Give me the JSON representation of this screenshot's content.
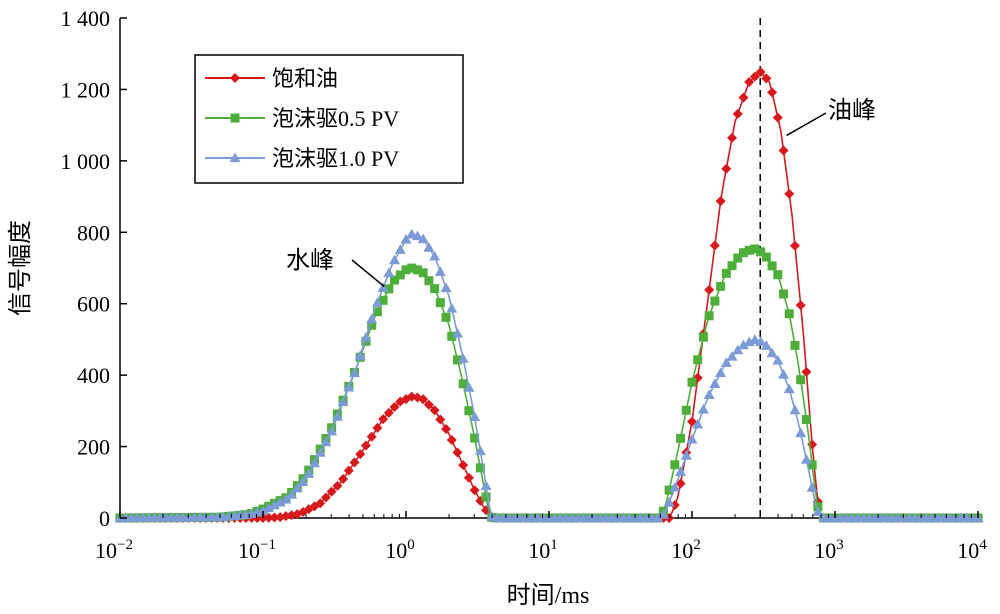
{
  "chart_data": {
    "type": "line",
    "title": "",
    "xlabel": "时间/ms",
    "ylabel": "信号幅度",
    "x_scale": "log",
    "xlim": [
      0.01,
      10000
    ],
    "ylim": [
      0,
      1400
    ],
    "grid": false,
    "legend_position": "top-left",
    "x_tick_labels": [
      "10⁻²",
      "10⁻¹",
      "10⁰",
      "10¹",
      "10²",
      "10³",
      "10⁴"
    ],
    "x_tick_values": [
      0.01,
      0.1,
      1,
      10,
      100,
      1000,
      10000
    ],
    "y_tick_labels": [
      "0",
      "200",
      "400",
      "600",
      "800",
      "1 000",
      "1 200",
      "1 400"
    ],
    "y_tick_values": [
      0,
      200,
      400,
      600,
      800,
      1000,
      1200,
      1400
    ],
    "series": [
      {
        "name": "饱和油",
        "color": "#d7191c",
        "marker": "diamond",
        "points": [
          [
            0.01,
            0
          ],
          [
            0.1,
            0
          ],
          [
            0.13,
            2
          ],
          [
            0.18,
            12
          ],
          [
            0.25,
            40
          ],
          [
            0.35,
            100
          ],
          [
            0.5,
            190
          ],
          [
            0.7,
            280
          ],
          [
            0.9,
            325
          ],
          [
            1.1,
            340
          ],
          [
            1.3,
            335
          ],
          [
            1.6,
            300
          ],
          [
            2.0,
            235
          ],
          [
            2.5,
            150
          ],
          [
            3.0,
            80
          ],
          [
            3.5,
            30
          ],
          [
            4.0,
            0
          ],
          [
            10,
            0
          ],
          [
            60,
            0
          ],
          [
            70,
            0
          ],
          [
            80,
            60
          ],
          [
            100,
            270
          ],
          [
            130,
            620
          ],
          [
            160,
            900
          ],
          [
            200,
            1110
          ],
          [
            250,
            1220
          ],
          [
            300,
            1250
          ],
          [
            350,
            1220
          ],
          [
            420,
            1080
          ],
          [
            500,
            850
          ],
          [
            600,
            520
          ],
          [
            700,
            180
          ],
          [
            780,
            0
          ],
          [
            10000,
            0
          ]
        ]
      },
      {
        "name": "泡沫驱0.5 PV",
        "color": "#4daf3a",
        "marker": "square",
        "points": [
          [
            0.01,
            0
          ],
          [
            0.05,
            2
          ],
          [
            0.08,
            10
          ],
          [
            0.1,
            25
          ],
          [
            0.15,
            60
          ],
          [
            0.2,
            120
          ],
          [
            0.3,
            250
          ],
          [
            0.45,
            420
          ],
          [
            0.6,
            560
          ],
          [
            0.8,
            660
          ],
          [
            1.0,
            695
          ],
          [
            1.1,
            700
          ],
          [
            1.3,
            690
          ],
          [
            1.6,
            640
          ],
          [
            2.0,
            540
          ],
          [
            2.5,
            380
          ],
          [
            3.0,
            230
          ],
          [
            3.5,
            90
          ],
          [
            3.8,
            20
          ],
          [
            4.0,
            0
          ],
          [
            10,
            0
          ],
          [
            60,
            0
          ],
          [
            65,
            30
          ],
          [
            80,
            190
          ],
          [
            100,
            380
          ],
          [
            130,
            560
          ],
          [
            170,
            680
          ],
          [
            220,
            740
          ],
          [
            270,
            755
          ],
          [
            320,
            740
          ],
          [
            400,
            680
          ],
          [
            480,
            570
          ],
          [
            560,
            420
          ],
          [
            650,
            240
          ],
          [
            720,
            90
          ],
          [
            780,
            0
          ],
          [
            10000,
            0
          ]
        ]
      },
      {
        "name": "泡沫驱1.0 PV",
        "color": "#7b9bd6",
        "marker": "triangle",
        "points": [
          [
            0.01,
            0
          ],
          [
            0.05,
            2
          ],
          [
            0.08,
            10
          ],
          [
            0.1,
            20
          ],
          [
            0.15,
            55
          ],
          [
            0.2,
            110
          ],
          [
            0.3,
            240
          ],
          [
            0.45,
            420
          ],
          [
            0.6,
            580
          ],
          [
            0.8,
            710
          ],
          [
            1.0,
            780
          ],
          [
            1.1,
            795
          ],
          [
            1.3,
            785
          ],
          [
            1.6,
            730
          ],
          [
            2.0,
            620
          ],
          [
            2.5,
            450
          ],
          [
            3.0,
            290
          ],
          [
            3.5,
            130
          ],
          [
            3.8,
            40
          ],
          [
            4.0,
            0
          ],
          [
            10,
            0
          ],
          [
            60,
            0
          ],
          [
            65,
            15
          ],
          [
            80,
            110
          ],
          [
            100,
            220
          ],
          [
            130,
            340
          ],
          [
            170,
            430
          ],
          [
            220,
            480
          ],
          [
            270,
            500
          ],
          [
            320,
            490
          ],
          [
            400,
            440
          ],
          [
            480,
            360
          ],
          [
            560,
            260
          ],
          [
            650,
            140
          ],
          [
            720,
            50
          ],
          [
            780,
            0
          ],
          [
            10000,
            0
          ]
        ]
      }
    ],
    "reference_lines": [
      {
        "axis": "x",
        "value": 300,
        "style": "dashed"
      }
    ],
    "annotations": [
      {
        "text": "水峰",
        "target": [
          0.6,
          620
        ]
      },
      {
        "text": "油峰",
        "target": [
          430,
          1060
        ]
      }
    ]
  }
}
